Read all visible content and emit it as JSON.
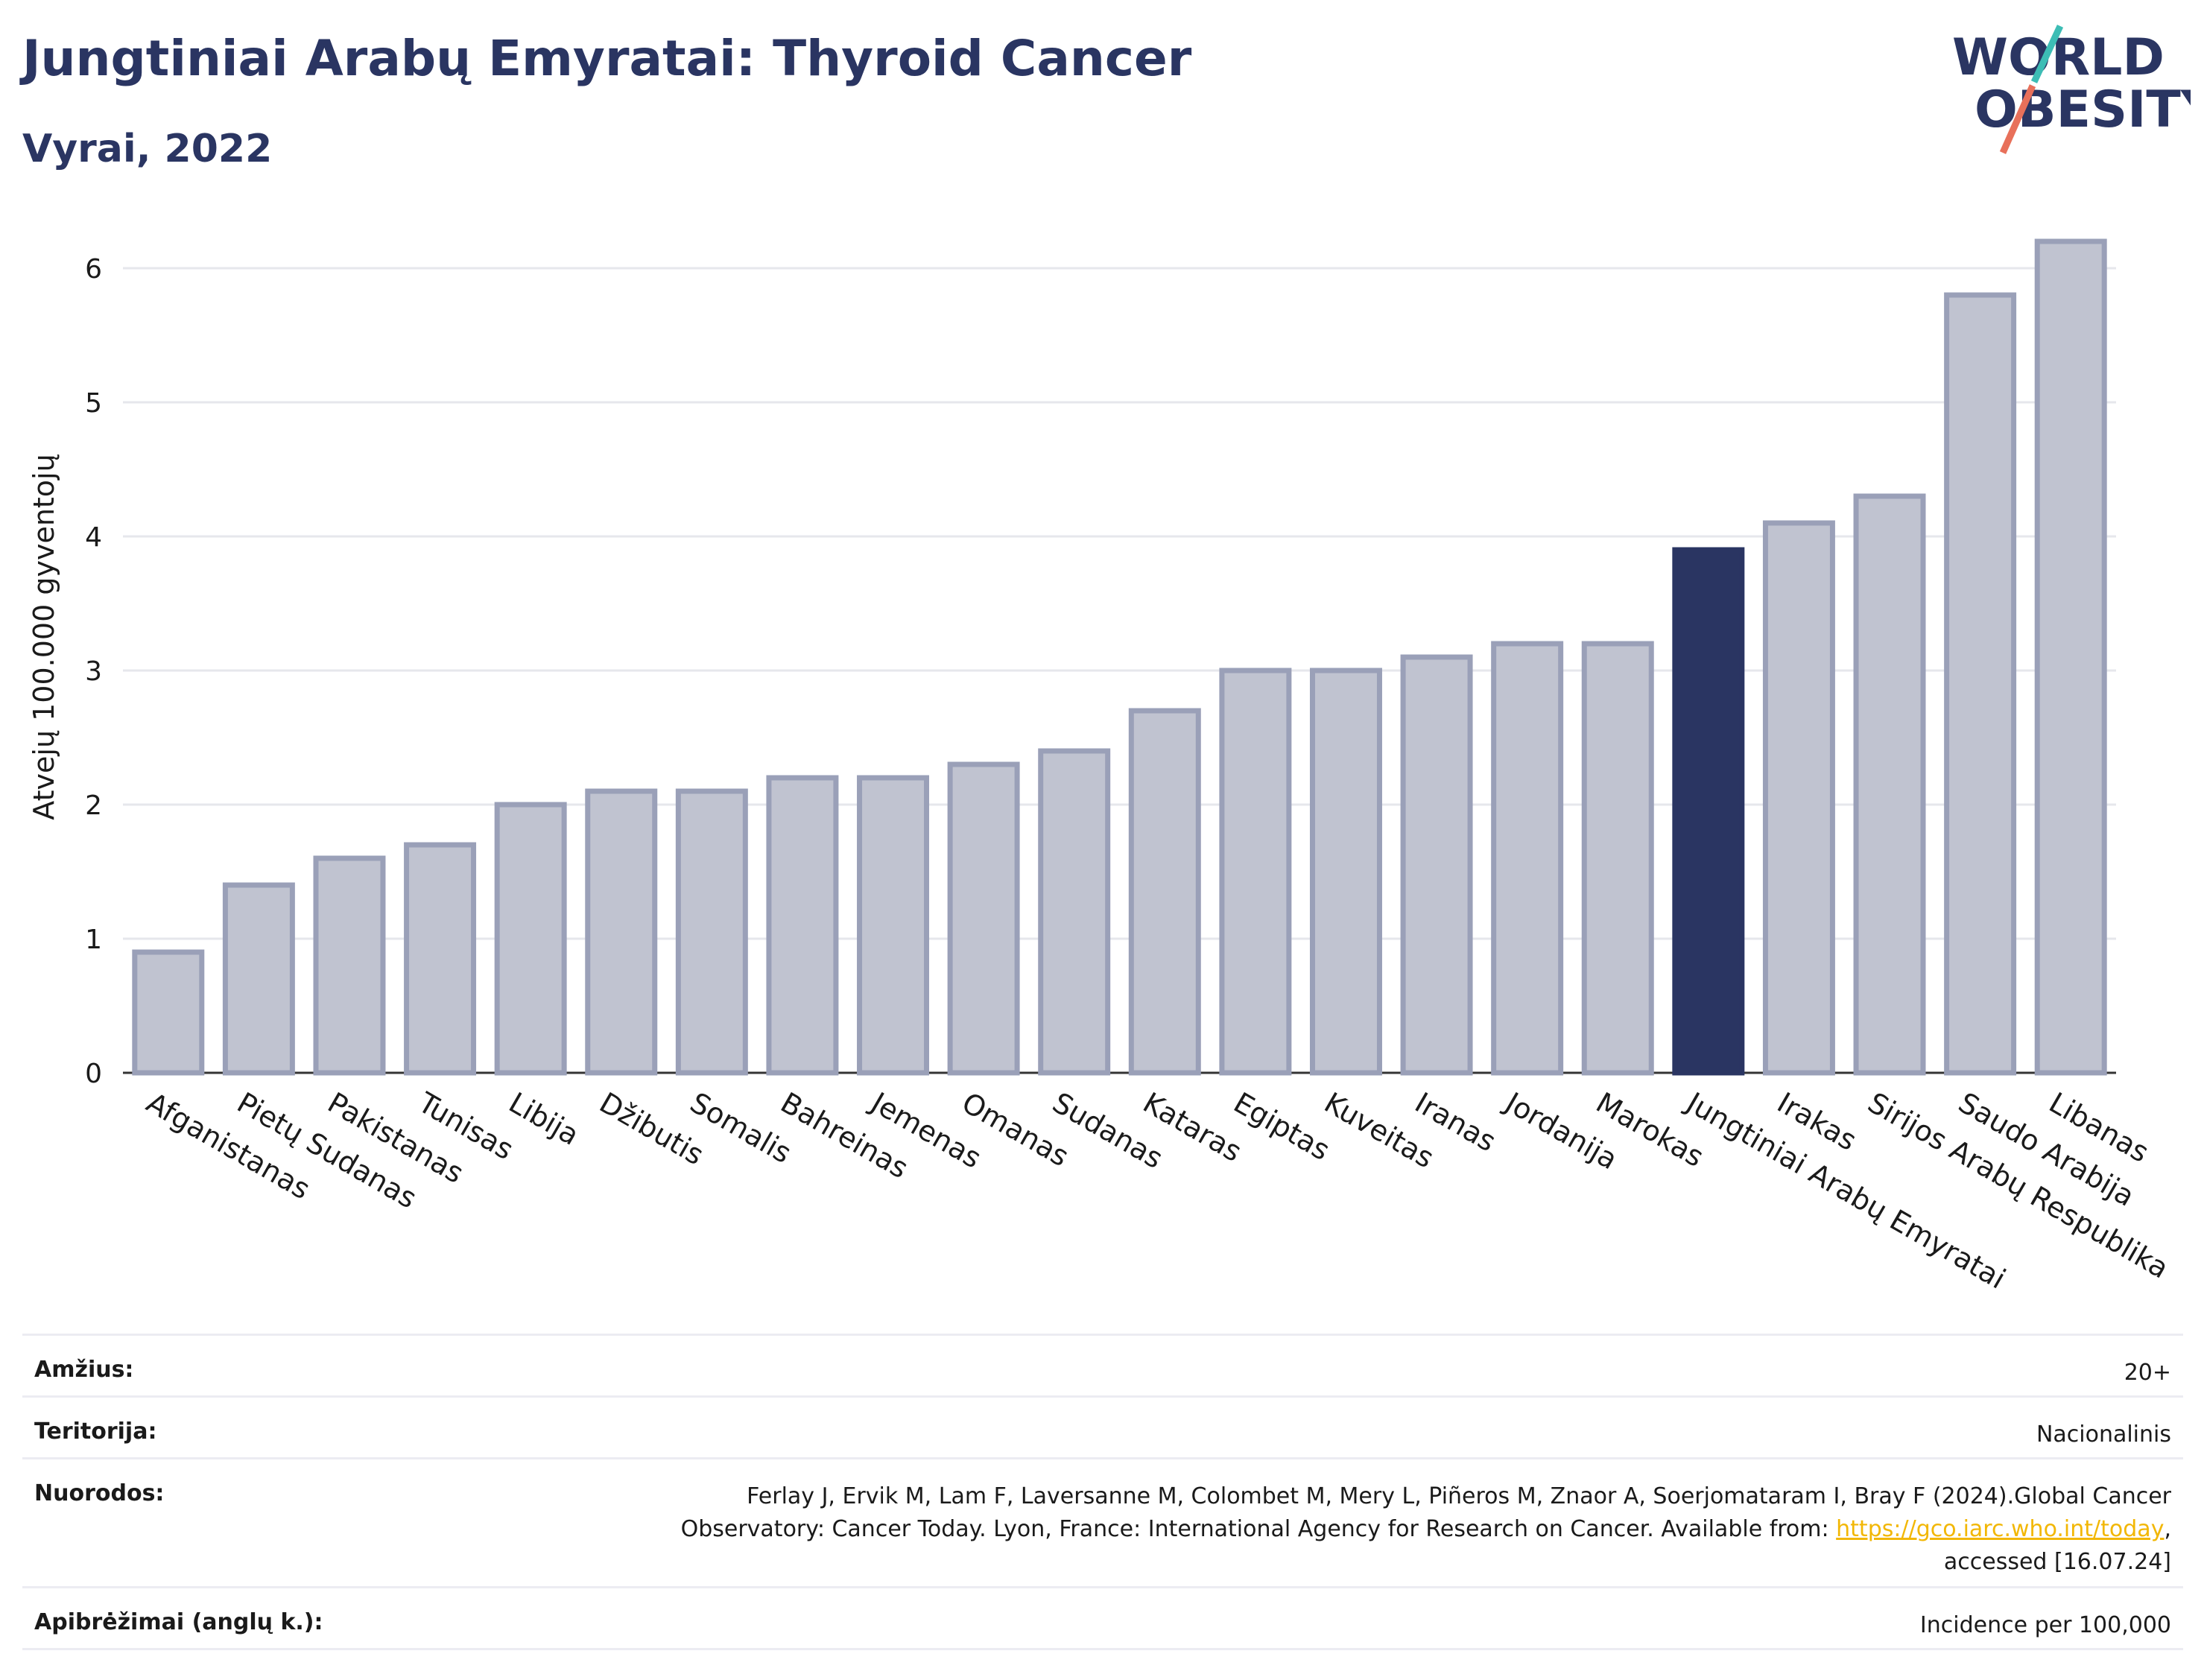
{
  "header": {
    "title": "Jungtiniai Arabų Emyratai: Thyroid Cancer",
    "subtitle": "Vyrai, 2022"
  },
  "logo": {
    "line1": "WORLD",
    "line2": "OBESITY"
  },
  "chart_data": {
    "type": "bar",
    "ylabel": "Atvejų 100.000 gyventojų",
    "xlabel": "",
    "ylim": [
      0,
      6.5
    ],
    "yticks": [
      0,
      1,
      2,
      3,
      4,
      5,
      6
    ],
    "grid": true,
    "highlight": "Jungtiniai Arabų Emyratai",
    "colors": {
      "default": "#c0c3d0",
      "border": "#9aa0b8",
      "highlight": "#2a3562"
    },
    "categories": [
      "Afganistanas",
      "Pietų Sudanas",
      "Pakistanas",
      "Tunisas",
      "Libija",
      "Džibutis",
      "Somalis",
      "Bahreinas",
      "Jemenas",
      "Omanas",
      "Sudanas",
      "Kataras",
      "Egiptas",
      "Kuveitas",
      "Iranas",
      "Jordanija",
      "Marokas",
      "Jungtiniai Arabų Emyratai",
      "Irakas",
      "Sirijos Arabų Respublika",
      "Saudo Arabija",
      "Libanas"
    ],
    "values": [
      0.9,
      1.4,
      1.6,
      1.7,
      2.0,
      2.1,
      2.1,
      2.2,
      2.2,
      2.3,
      2.4,
      2.7,
      3.0,
      3.0,
      3.1,
      3.2,
      3.2,
      3.9,
      4.1,
      4.3,
      5.8,
      6.2
    ]
  },
  "meta": {
    "age_label": "Amžius:",
    "age_value": "20+",
    "territory_label": "Teritorija:",
    "territory_value": "Nacionalinis",
    "refs_label": "Nuorodos:",
    "refs_line1": "Ferlay J, Ervik M, Lam F, Laversanne M, Colombet M, Mery L, Piñeros M, Znaor A, Soerjomataram I, Bray F (2024).Global Cancer",
    "refs_line2a": "Observatory: Cancer Today. Lyon, France: International Agency for Research on Cancer. Available from: ",
    "refs_link": "https://gco.iarc.who.int/today",
    "refs_line2b": ",",
    "refs_line3": "accessed [16.07.24]",
    "defs_label": "Apibrėžimai (anglų k.):",
    "defs_value": "Incidence per 100,000"
  }
}
